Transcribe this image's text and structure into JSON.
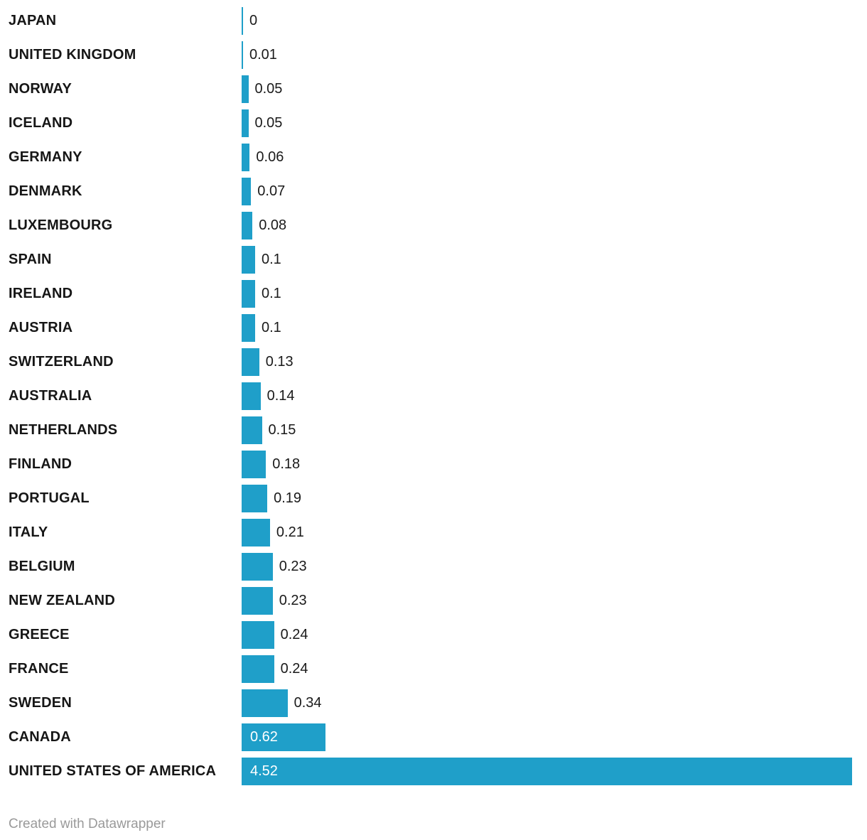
{
  "chart_data": {
    "type": "bar",
    "orientation": "horizontal",
    "title": "",
    "xlabel": "",
    "ylabel": "",
    "legend_position": "none",
    "grid": false,
    "xlim": [
      0,
      4.57
    ],
    "categories": [
      "JAPAN",
      "UNITED KINGDOM",
      "NORWAY",
      "ICELAND",
      "GERMANY",
      "DENMARK",
      "LUXEMBOURG",
      "SPAIN",
      "IRELAND",
      "AUSTRIA",
      "SWITZERLAND",
      "AUSTRALIA",
      "NETHERLANDS",
      "FINLAND",
      "PORTUGAL",
      "ITALY",
      "BELGIUM",
      "NEW ZEALAND",
      "GREECE",
      "FRANCE",
      "SWEDEN",
      "CANADA",
      "UNITED STATES OF AMERICA"
    ],
    "values": [
      0,
      0.01,
      0.05,
      0.05,
      0.06,
      0.07,
      0.08,
      0.1,
      0.1,
      0.1,
      0.13,
      0.14,
      0.15,
      0.18,
      0.19,
      0.21,
      0.23,
      0.23,
      0.24,
      0.24,
      0.34,
      0.62,
      4.52
    ],
    "value_labels": [
      "0",
      "0.01",
      "0.05",
      "0.05",
      "0.06",
      "0.07",
      "0.08",
      "0.1",
      "0.1",
      "0.1",
      "0.13",
      "0.14",
      "0.15",
      "0.18",
      "0.19",
      "0.21",
      "0.23",
      "0.23",
      "0.24",
      "0.24",
      "0.34",
      "0.62",
      "4.52"
    ]
  },
  "colors": {
    "bar": "#1F9FC9",
    "country_label": "#161616",
    "value_outside": "#1a1a1a",
    "value_inside": "#ffffff",
    "credit": "#9a9a9a",
    "background": "#ffffff"
  },
  "footer": {
    "credit": "Created with Datawrapper"
  }
}
